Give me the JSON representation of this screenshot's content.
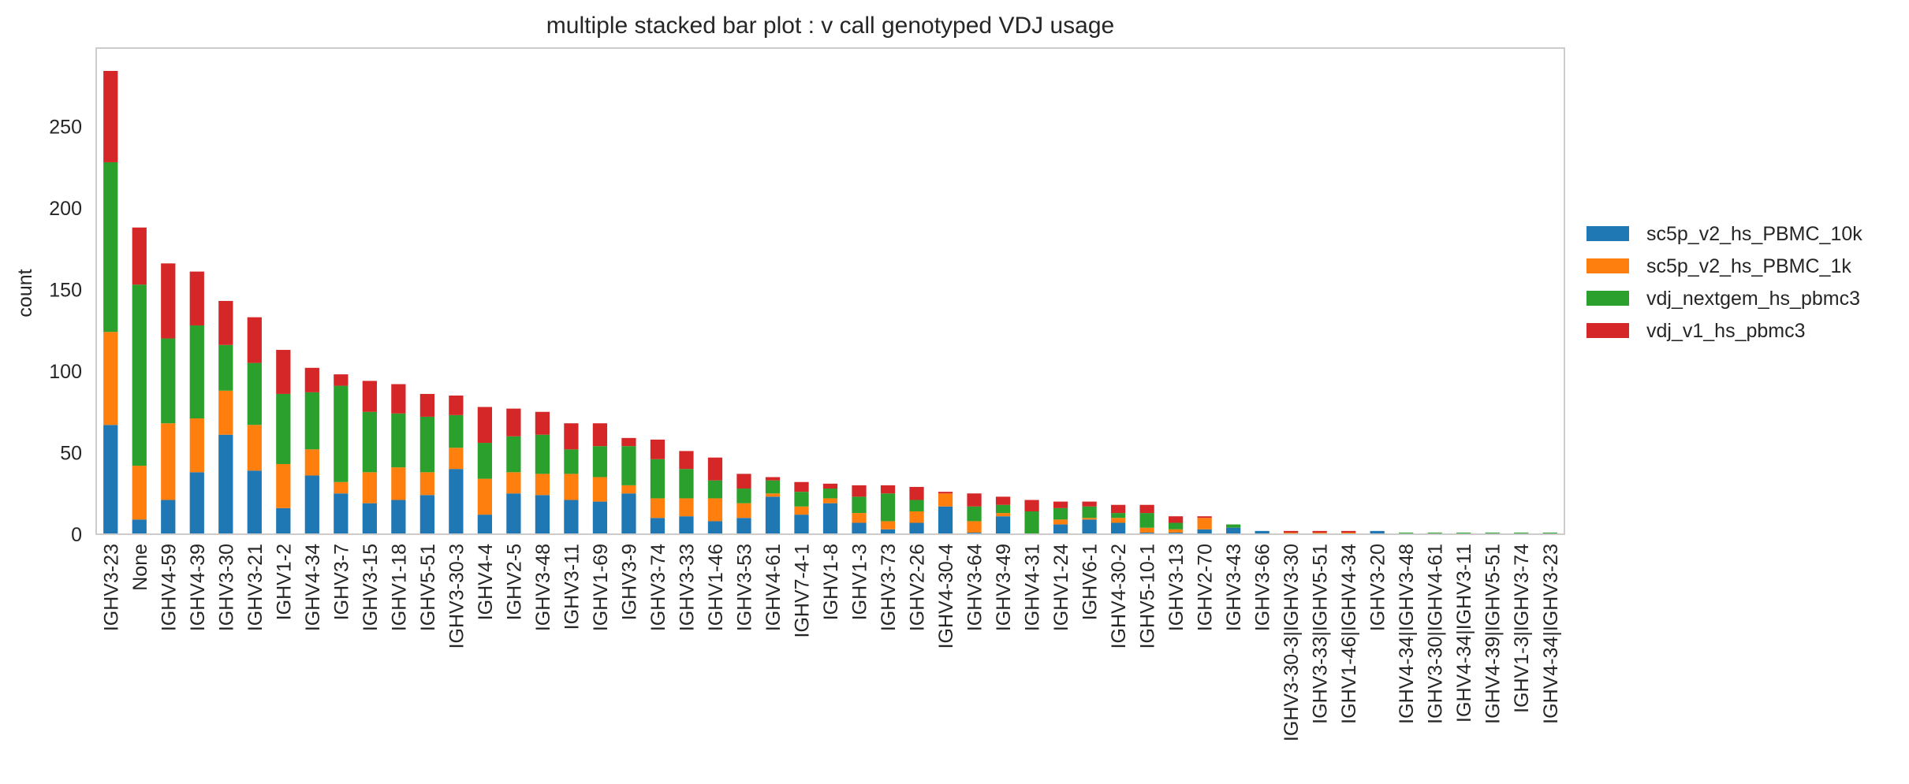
{
  "chart_data": {
    "type": "bar",
    "stacked": true,
    "title": "multiple stacked bar plot : v call genotyped VDJ usage",
    "xlabel": "",
    "ylabel": "count",
    "ylim": [
      0,
      298
    ],
    "yticks": [
      0,
      50,
      100,
      150,
      200,
      250
    ],
    "grid": false,
    "legend_position": "right, outside plot",
    "categories": [
      "IGHV3-23",
      "None",
      "IGHV4-59",
      "IGHV4-39",
      "IGHV3-30",
      "IGHV3-21",
      "IGHV1-2",
      "IGHV4-34",
      "IGHV3-7",
      "IGHV3-15",
      "IGHV1-18",
      "IGHV5-51",
      "IGHV3-30-3",
      "IGHV4-4",
      "IGHV2-5",
      "IGHV3-48",
      "IGHV3-11",
      "IGHV1-69",
      "IGHV3-9",
      "IGHV3-74",
      "IGHV3-33",
      "IGHV1-46",
      "IGHV3-53",
      "IGHV4-61",
      "IGHV7-4-1",
      "IGHV1-8",
      "IGHV1-3",
      "IGHV3-73",
      "IGHV2-26",
      "IGHV4-30-4",
      "IGHV3-64",
      "IGHV3-49",
      "IGHV4-31",
      "IGHV1-24",
      "IGHV6-1",
      "IGHV4-30-2",
      "IGHV5-10-1",
      "IGHV3-13",
      "IGHV2-70",
      "IGHV3-43",
      "IGHV3-66",
      "IGHV3-30-3|IGHV3-30",
      "IGHV3-33|IGHV5-51",
      "IGHV1-46|IGHV4-34",
      "IGHV3-20",
      "IGHV4-34|IGHV3-48",
      "IGHV3-30|IGHV4-61",
      "IGHV4-34|IGHV3-11",
      "IGHV4-39|IGHV5-51",
      "IGHV1-3|IGHV3-74",
      "IGHV4-34|IGHV3-23"
    ],
    "series": [
      {
        "name": "sc5p_v2_hs_PBMC_10k",
        "color": "#1f77b4",
        "values": [
          67,
          9,
          21,
          38,
          61,
          39,
          16,
          36,
          25,
          19,
          21,
          24,
          40,
          12,
          25,
          24,
          21,
          20,
          25,
          10,
          11,
          8,
          10,
          23,
          12,
          19,
          7,
          3,
          7,
          17,
          1,
          11,
          0,
          6,
          9,
          7,
          1,
          1,
          3,
          4,
          2,
          0,
          0,
          0,
          2,
          0,
          0,
          0,
          0,
          0,
          0
        ]
      },
      {
        "name": "sc5p_v2_hs_PBMC_1k",
        "color": "#ff7f0e",
        "values": [
          57,
          33,
          47,
          33,
          27,
          28,
          27,
          16,
          7,
          19,
          20,
          14,
          13,
          22,
          13,
          13,
          16,
          15,
          5,
          12,
          11,
          14,
          9,
          2,
          5,
          3,
          6,
          5,
          7,
          8,
          7,
          2,
          0,
          3,
          1,
          3,
          3,
          2,
          7,
          0,
          0,
          1,
          1,
          1,
          0,
          0,
          0,
          0,
          0,
          0,
          0
        ]
      },
      {
        "name": "vdj_nextgem_hs_pbmc3",
        "color": "#2ca02c",
        "values": [
          104,
          111,
          52,
          57,
          28,
          38,
          43,
          35,
          59,
          37,
          33,
          34,
          20,
          22,
          22,
          24,
          15,
          19,
          24,
          24,
          18,
          11,
          9,
          8,
          9,
          6,
          10,
          17,
          7,
          0,
          9,
          5,
          14,
          7,
          7,
          3,
          9,
          4,
          0,
          2,
          0,
          0,
          0,
          0,
          0,
          1,
          1,
          1,
          1,
          1,
          1
        ]
      },
      {
        "name": "vdj_v1_hs_pbmc3",
        "color": "#d62728",
        "values": [
          56,
          35,
          46,
          33,
          27,
          28,
          27,
          15,
          7,
          19,
          18,
          14,
          12,
          22,
          17,
          14,
          16,
          14,
          5,
          12,
          11,
          14,
          9,
          2,
          6,
          3,
          7,
          5,
          8,
          1,
          8,
          5,
          7,
          4,
          3,
          5,
          5,
          4,
          1,
          0,
          0,
          1,
          1,
          1,
          0,
          0,
          0,
          0,
          0,
          0,
          0
        ]
      }
    ]
  }
}
